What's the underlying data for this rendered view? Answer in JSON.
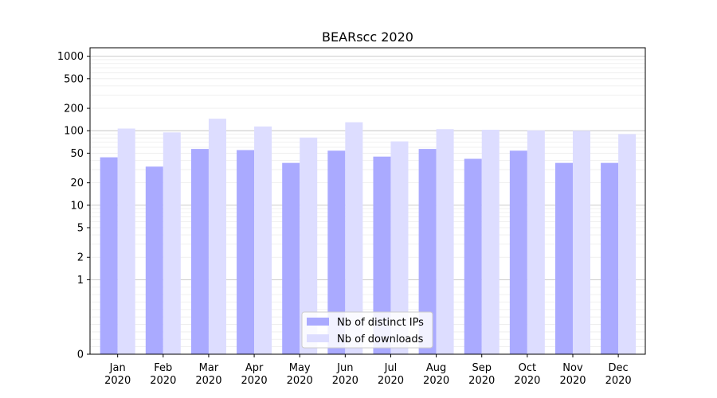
{
  "chart_data": {
    "type": "bar",
    "title": "BEARscc 2020",
    "xlabel": "",
    "ylabel": "",
    "yscale": "symlog",
    "ylim": [
      0,
      1300
    ],
    "yticks": [
      0,
      1,
      2,
      5,
      10,
      20,
      50,
      100,
      200,
      500,
      1000
    ],
    "grid": true,
    "legend_position": "bottom-center",
    "categories": [
      "Jan\n2020",
      "Feb\n2020",
      "Mar\n2020",
      "Apr\n2020",
      "May\n2020",
      "Jun\n2020",
      "Jul\n2020",
      "Aug\n2020",
      "Sep\n2020",
      "Oct\n2020",
      "Nov\n2020",
      "Dec\n2020"
    ],
    "series": [
      {
        "name": "Nb of distinct IPs",
        "color": "#aaaaff",
        "values": [
          44,
          33,
          57,
          55,
          37,
          54,
          45,
          57,
          42,
          54,
          37,
          37
        ]
      },
      {
        "name": "Nb of downloads",
        "color": "#ddddff",
        "values": [
          107,
          95,
          145,
          114,
          81,
          130,
          72,
          105,
          103,
          101,
          100,
          90
        ]
      }
    ]
  }
}
